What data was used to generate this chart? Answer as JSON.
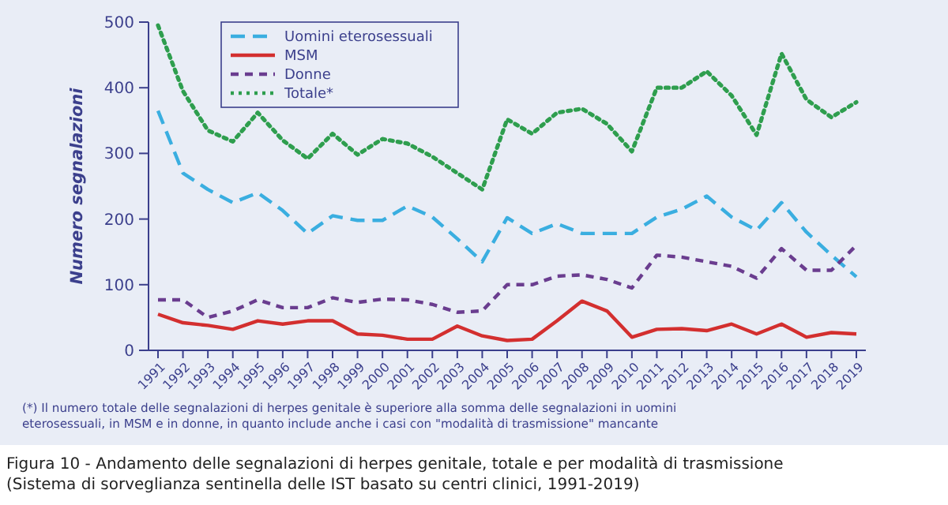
{
  "chart_data": {
    "type": "line",
    "title": "Figura 10 - Andamento delle segnalazioni di herpes genitale, totale e per modalità di trasmissione (Sistema di sorveglianza sentinella delle IST basato su centri clinici, 1991-2019)",
    "ylabel": "Numero segnalazioni",
    "annotations": [
      "(*) Il numero totale delle segnalazioni di herpes genitale è superiore alla somma delle segnalazioni in uomini eterosessuali, in MSM e in donne, in quanto include anche i casi con \"modalità di trasmissione\" mancante"
    ],
    "categories": [
      "1991",
      "1992",
      "1993",
      "1994",
      "1995",
      "1996",
      "1997",
      "1998",
      "1999",
      "2000",
      "2001",
      "2002",
      "2003",
      "2004",
      "2005",
      "2006",
      "2007",
      "2008",
      "2009",
      "2010",
      "2011",
      "2012",
      "2013",
      "2014",
      "2015",
      "2016",
      "2017",
      "2018",
      "2019"
    ],
    "series": [
      {
        "name": "Uomini eterosessuali",
        "color": "#3aaee0",
        "line_style": "dashed",
        "values": [
          365,
          270,
          245,
          225,
          240,
          213,
          178,
          205,
          198,
          198,
          220,
          203,
          170,
          135,
          202,
          178,
          193,
          178,
          178,
          178,
          203,
          215,
          235,
          203,
          183,
          225,
          180,
          145,
          112
        ]
      },
      {
        "name": "MSM",
        "color": "#d32f2f",
        "line_style": "solid",
        "values": [
          55,
          42,
          38,
          32,
          45,
          40,
          45,
          45,
          25,
          23,
          17,
          17,
          37,
          22,
          15,
          17,
          45,
          75,
          60,
          20,
          32,
          33,
          30,
          40,
          25,
          40,
          20,
          27,
          25
        ]
      },
      {
        "name": "Donne",
        "color": "#6a3d8f",
        "line_style": "dashed",
        "values": [
          77,
          77,
          50,
          60,
          77,
          65,
          65,
          80,
          73,
          78,
          77,
          70,
          58,
          60,
          100,
          100,
          113,
          115,
          108,
          95,
          145,
          142,
          135,
          128,
          110,
          155,
          122,
          122,
          160
        ]
      },
      {
        "name": "Totale*",
        "color": "#2e9e4e",
        "line_style": "dotted",
        "values": [
          495,
          395,
          335,
          318,
          362,
          320,
          292,
          330,
          298,
          322,
          315,
          295,
          270,
          245,
          352,
          330,
          362,
          368,
          345,
          303,
          400,
          400,
          425,
          388,
          328,
          452,
          382,
          355,
          378
        ]
      }
    ],
    "ylim": [
      0,
      500
    ],
    "yticks": [
      0,
      100,
      200,
      300,
      400,
      500
    ],
    "grid": false,
    "legend": "top left"
  }
}
